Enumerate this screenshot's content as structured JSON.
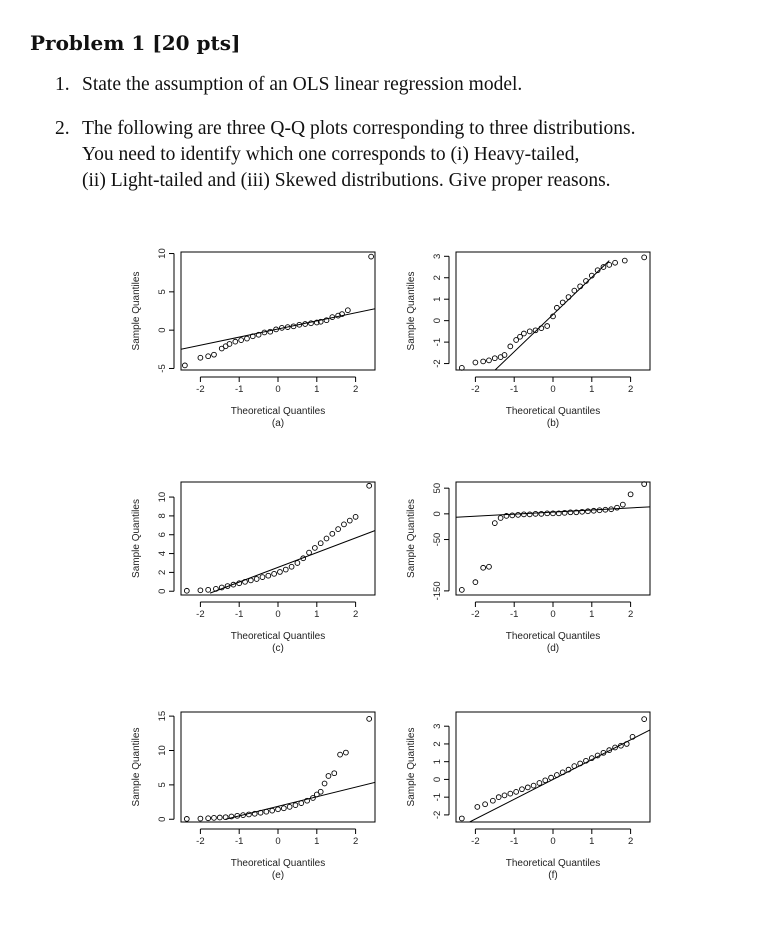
{
  "problem": {
    "title": "Problem 1 [20 pts]"
  },
  "questions": [
    {
      "number": "1.",
      "lines": [
        "State the assumption of an OLS linear regression model."
      ]
    },
    {
      "number": "2.",
      "lines": [
        "The following are three Q-Q plots corresponding to three distributions.",
        "You need to identify which one corresponds to (i) Heavy-tailed,",
        "(ii) Light-tailed and (iii) Skewed distributions. Give proper reasons."
      ]
    }
  ],
  "chart_data": [
    {
      "type": "scatter",
      "caption": "(a)",
      "xlabel": "Theoretical Quantiles",
      "ylabel": "Sample Quantiles",
      "xlim": [
        -2.5,
        2.5
      ],
      "ylim": [
        -5.2,
        10.2
      ],
      "xticks": [
        -2,
        -1,
        0,
        1,
        2
      ],
      "yticks": [
        -5,
        0,
        5,
        10
      ],
      "x": [
        -2.4,
        -2.0,
        -1.8,
        -1.65,
        -1.45,
        -1.35,
        -1.25,
        -1.1,
        -0.95,
        -0.8,
        -0.65,
        -0.5,
        -0.35,
        -0.2,
        -0.05,
        0.1,
        0.25,
        0.4,
        0.55,
        0.7,
        0.85,
        1.0,
        1.1,
        1.25,
        1.4,
        1.55,
        1.65,
        1.8,
        2.4
      ],
      "y": [
        -4.6,
        -3.6,
        -3.4,
        -3.2,
        -2.4,
        -2.1,
        -1.8,
        -1.5,
        -1.3,
        -1.1,
        -0.8,
        -0.6,
        -0.3,
        -0.2,
        0.1,
        0.3,
        0.4,
        0.5,
        0.7,
        0.8,
        0.9,
        1.0,
        1.1,
        1.3,
        1.7,
        1.9,
        2.1,
        2.6,
        9.6
      ],
      "ref_line": [
        [
          -2.6,
          -2.6
        ],
        [
          2.6,
          2.9
        ]
      ]
    },
    {
      "type": "scatter",
      "caption": "(b)",
      "xlabel": "Theoretical Quantiles",
      "ylabel": "Sample Quantiles",
      "xlim": [
        -2.5,
        2.5
      ],
      "ylim": [
        -2.3,
        3.2
      ],
      "xticks": [
        -2,
        -1,
        0,
        1,
        2
      ],
      "yticks": [
        -2,
        -1,
        0,
        1,
        2,
        3
      ],
      "x": [
        -2.35,
        -2.0,
        -1.8,
        -1.65,
        -1.5,
        -1.35,
        -1.25,
        -1.1,
        -0.95,
        -0.85,
        -0.75,
        -0.6,
        -0.45,
        -0.3,
        -0.15,
        0.0,
        0.1,
        0.25,
        0.4,
        0.55,
        0.7,
        0.85,
        1.0,
        1.15,
        1.3,
        1.45,
        1.6,
        1.85,
        2.35
      ],
      "y": [
        -2.2,
        -1.95,
        -1.9,
        -1.85,
        -1.75,
        -1.7,
        -1.6,
        -1.2,
        -0.9,
        -0.75,
        -0.6,
        -0.5,
        -0.45,
        -0.35,
        -0.25,
        0.2,
        0.6,
        0.85,
        1.1,
        1.4,
        1.6,
        1.85,
        2.1,
        2.35,
        2.5,
        2.6,
        2.7,
        2.8,
        2.95
      ],
      "ref_line": [
        [
          -1.55,
          -2.4
        ],
        [
          1.45,
          2.8
        ]
      ]
    },
    {
      "type": "scatter",
      "caption": "(c)",
      "xlabel": "Theoretical Quantiles",
      "ylabel": "Sample Quantiles",
      "xlim": [
        -2.5,
        2.5
      ],
      "ylim": [
        -0.4,
        11.6
      ],
      "xticks": [
        -2,
        -1,
        0,
        1,
        2
      ],
      "yticks": [
        0,
        2,
        4,
        6,
        8,
        10
      ],
      "x": [
        -2.35,
        -2.0,
        -1.8,
        -1.6,
        -1.45,
        -1.3,
        -1.15,
        -1.0,
        -0.85,
        -0.7,
        -0.55,
        -0.4,
        -0.25,
        -0.1,
        0.05,
        0.2,
        0.35,
        0.5,
        0.65,
        0.8,
        0.95,
        1.1,
        1.25,
        1.4,
        1.55,
        1.7,
        1.85,
        2.0,
        2.35
      ],
      "y": [
        0.05,
        0.1,
        0.15,
        0.25,
        0.4,
        0.55,
        0.7,
        0.85,
        1.0,
        1.15,
        1.3,
        1.5,
        1.65,
        1.85,
        2.05,
        2.3,
        2.6,
        3.0,
        3.5,
        4.1,
        4.6,
        5.1,
        5.6,
        6.1,
        6.6,
        7.1,
        7.5,
        7.9,
        11.2
      ],
      "ref_line": [
        [
          -1.75,
          -0.2
        ],
        [
          2.6,
          6.6
        ]
      ]
    },
    {
      "type": "scatter",
      "caption": "(d)",
      "xlabel": "Theoretical Quantiles",
      "ylabel": "Sample Quantiles",
      "xlim": [
        -2.5,
        2.5
      ],
      "ylim": [
        -158,
        62
      ],
      "xticks": [
        -2,
        -1,
        0,
        1,
        2
      ],
      "yticks": [
        -150,
        -50,
        0,
        50
      ],
      "x": [
        -2.35,
        -2.0,
        -1.8,
        -1.65,
        -1.5,
        -1.35,
        -1.2,
        -1.05,
        -0.9,
        -0.75,
        -0.6,
        -0.45,
        -0.3,
        -0.15,
        0.0,
        0.15,
        0.3,
        0.45,
        0.6,
        0.75,
        0.9,
        1.05,
        1.2,
        1.35,
        1.5,
        1.65,
        1.8,
        2.0,
        2.35
      ],
      "y": [
        -148,
        -133,
        -105,
        -103,
        -18,
        -8,
        -4,
        -3,
        -2,
        -1,
        -1,
        0,
        0,
        1,
        1,
        1,
        2,
        3,
        3,
        4,
        5,
        6,
        7,
        8,
        9,
        12,
        18,
        38,
        58
      ],
      "ref_line": [
        [
          -2.6,
          -7
        ],
        [
          2.6,
          14
        ]
      ]
    },
    {
      "type": "scatter",
      "caption": "(e)",
      "xlabel": "Theoretical Quantiles",
      "ylabel": "Sample Quantiles",
      "xlim": [
        -2.5,
        2.5
      ],
      "ylim": [
        -0.4,
        15.6
      ],
      "xticks": [
        -2,
        -1,
        0,
        1,
        2
      ],
      "yticks": [
        0,
        5,
        10,
        15
      ],
      "x": [
        -2.35,
        -2.0,
        -1.8,
        -1.65,
        -1.5,
        -1.35,
        -1.2,
        -1.05,
        -0.9,
        -0.75,
        -0.6,
        -0.45,
        -0.3,
        -0.15,
        0.0,
        0.15,
        0.3,
        0.45,
        0.6,
        0.75,
        0.9,
        1.0,
        1.1,
        1.2,
        1.3,
        1.45,
        1.6,
        1.75,
        2.35
      ],
      "y": [
        0.05,
        0.1,
        0.15,
        0.2,
        0.25,
        0.3,
        0.4,
        0.5,
        0.6,
        0.7,
        0.8,
        0.95,
        1.1,
        1.25,
        1.45,
        1.6,
        1.8,
        2.05,
        2.35,
        2.7,
        3.1,
        3.6,
        4.0,
        5.2,
        6.3,
        6.7,
        9.4,
        9.7,
        14.6
      ],
      "ref_line": [
        [
          -1.35,
          0.0
        ],
        [
          2.6,
          5.5
        ]
      ]
    },
    {
      "type": "scatter",
      "caption": "(f)",
      "xlabel": "Theoretical Quantiles",
      "ylabel": "Sample Quantiles",
      "xlim": [
        -2.5,
        2.5
      ],
      "ylim": [
        -2.4,
        3.8
      ],
      "xticks": [
        -2,
        -1,
        0,
        1,
        2
      ],
      "yticks": [
        -2,
        -1,
        0,
        1,
        2,
        3
      ],
      "x": [
        -2.35,
        -1.95,
        -1.75,
        -1.55,
        -1.4,
        -1.25,
        -1.1,
        -0.95,
        -0.8,
        -0.65,
        -0.5,
        -0.35,
        -0.2,
        -0.05,
        0.1,
        0.25,
        0.4,
        0.55,
        0.7,
        0.85,
        1.0,
        1.15,
        1.3,
        1.45,
        1.6,
        1.75,
        1.9,
        2.05,
        2.35
      ],
      "y": [
        -2.2,
        -1.55,
        -1.4,
        -1.2,
        -1.0,
        -0.9,
        -0.8,
        -0.7,
        -0.55,
        -0.45,
        -0.35,
        -0.2,
        -0.05,
        0.1,
        0.25,
        0.4,
        0.55,
        0.75,
        0.9,
        1.05,
        1.2,
        1.35,
        1.5,
        1.65,
        1.8,
        1.9,
        2.0,
        2.4,
        3.4
      ],
      "ref_line": [
        [
          -2.15,
          -2.4
        ],
        [
          2.6,
          2.9
        ]
      ]
    }
  ]
}
